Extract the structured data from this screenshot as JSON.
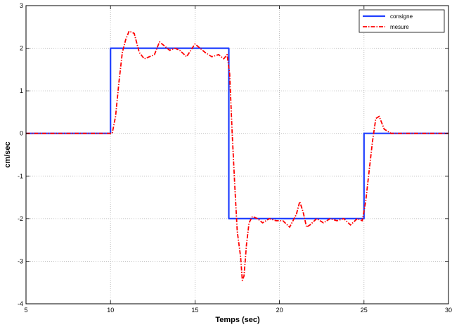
{
  "chart_data": {
    "type": "line",
    "title": "",
    "xlabel": "Temps (sec)",
    "ylabel": "cm/sec",
    "xlim": [
      5,
      30
    ],
    "ylim": [
      -4,
      3
    ],
    "xticks": [
      5,
      10,
      15,
      20,
      25,
      30
    ],
    "yticks": [
      -4,
      -3,
      -2,
      -1,
      0,
      1,
      2,
      3
    ],
    "grid": true,
    "legend_position": "top-right",
    "series": [
      {
        "name": "consigne",
        "color": "#1f3fff",
        "style": "solid",
        "x": [
          5,
          10,
          10,
          17,
          17,
          25,
          25,
          30
        ],
        "y": [
          0,
          0,
          2,
          2,
          -2,
          -2,
          0,
          0
        ]
      },
      {
        "name": "mesure",
        "color": "#ff0000",
        "style": "dash-dot",
        "x": [
          5,
          6,
          7,
          8,
          9,
          9.8,
          10.1,
          10.3,
          10.5,
          10.7,
          10.9,
          11.1,
          11.4,
          11.7,
          12.0,
          12.3,
          12.6,
          12.9,
          13.2,
          13.5,
          13.8,
          14.1,
          14.5,
          15.0,
          15.3,
          15.6,
          16.0,
          16.4,
          16.7,
          16.9,
          17.05,
          17.2,
          17.35,
          17.5,
          17.7,
          17.8,
          17.9,
          18.05,
          18.2,
          18.4,
          18.7,
          19.0,
          19.4,
          19.8,
          20.2,
          20.6,
          21.0,
          21.2,
          21.4,
          21.6,
          21.8,
          22.2,
          22.6,
          23.0,
          23.4,
          23.8,
          24.2,
          24.6,
          24.9,
          25.1,
          25.3,
          25.5,
          25.7,
          25.9,
          26.2,
          26.6,
          27.0,
          28,
          29,
          30
        ],
        "y": [
          0,
          0,
          0,
          0,
          0,
          0,
          0,
          0.4,
          1.2,
          1.9,
          2.2,
          2.4,
          2.35,
          1.9,
          1.75,
          1.8,
          1.85,
          2.15,
          2.05,
          1.95,
          2.0,
          1.95,
          1.8,
          2.1,
          2.0,
          1.9,
          1.8,
          1.85,
          1.75,
          1.85,
          1.4,
          0.0,
          -1.2,
          -2.3,
          -2.9,
          -3.45,
          -3.35,
          -2.6,
          -2.1,
          -1.95,
          -2.0,
          -2.1,
          -2.0,
          -2.05,
          -2.05,
          -2.2,
          -1.9,
          -1.6,
          -1.85,
          -2.2,
          -2.15,
          -2.0,
          -2.1,
          -2.0,
          -2.05,
          -2.0,
          -2.15,
          -2.0,
          -2.05,
          -1.6,
          -0.9,
          -0.2,
          0.35,
          0.4,
          0.1,
          0.0,
          0.0,
          0,
          0,
          0
        ]
      }
    ]
  }
}
